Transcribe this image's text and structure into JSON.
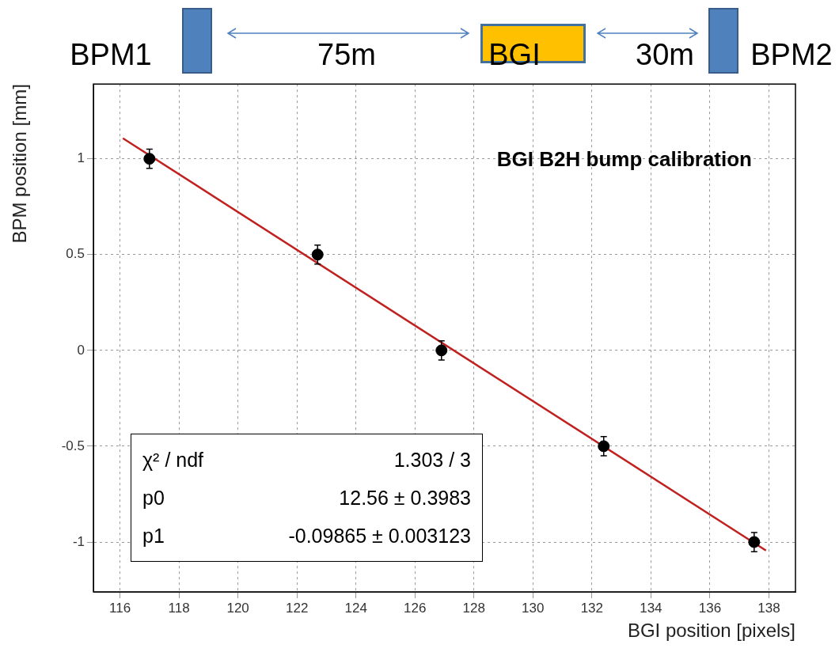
{
  "chart_data": {
    "type": "scatter",
    "title": "BGI B2H bump calibration",
    "xlabel": "BGI position [pixels]",
    "ylabel": "BPM position [mm]",
    "xlim": [
      115.1,
      138.9
    ],
    "xticks": [
      116,
      118,
      120,
      122,
      124,
      126,
      128,
      130,
      132,
      134,
      136,
      138
    ],
    "ylim": [
      -1.26,
      1.39
    ],
    "yticks": [
      -1,
      -0.5,
      0,
      0.5,
      1
    ],
    "series": [
      {
        "color": "#000000",
        "marker": "circle",
        "x": [
          117,
          122.7,
          126.9,
          132.4,
          137.5
        ],
        "values": [
          1,
          0.5,
          0,
          -0.5,
          -1
        ],
        "errors": [
          0.05,
          0.05,
          0.05,
          0.05,
          0.05
        ]
      },
      {
        "type": "line",
        "color": "#c0201e",
        "x": [
          116.1,
          137.9
        ],
        "values": [
          1.107,
          -1.044
        ]
      }
    ],
    "grid": true,
    "legend": false,
    "annotations": [
      "BPM1",
      "75m",
      "BGI",
      "30m",
      "BPM2",
      "χ² / ndf",
      "1.303 / 3",
      "p0",
      "12.56 ± 0.3983",
      "p1",
      "-0.09865 ± 0.003123"
    ]
  }
}
